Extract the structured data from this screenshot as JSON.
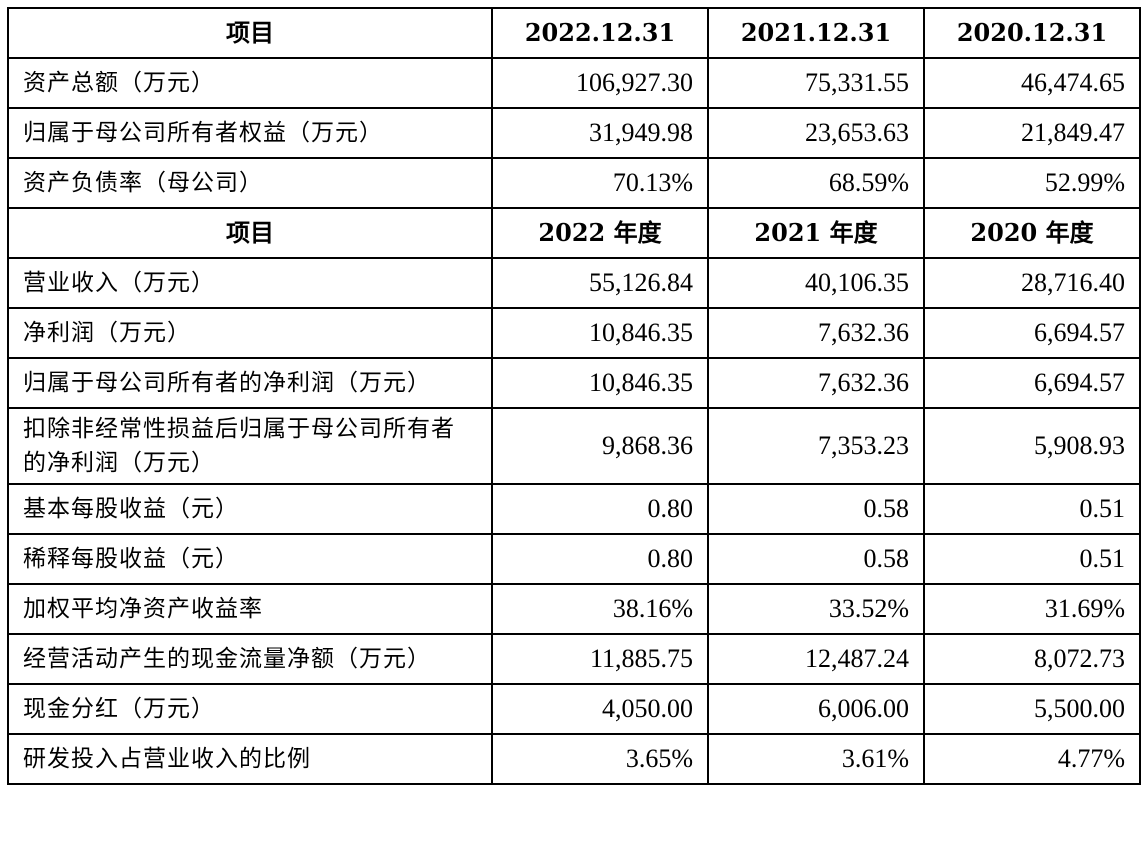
{
  "section1": {
    "header": [
      "项目",
      "2022.12.31",
      "2021.12.31",
      "2020.12.31"
    ],
    "rows": [
      {
        "label": "资产总额（万元）",
        "values": [
          "106,927.30",
          "75,331.55",
          "46,474.65"
        ]
      },
      {
        "label": "归属于母公司所有者权益（万元）",
        "values": [
          "31,949.98",
          "23,653.63",
          "21,849.47"
        ]
      },
      {
        "label": "资产负债率（母公司）",
        "values": [
          "70.13%",
          "68.59%",
          "52.99%"
        ]
      }
    ]
  },
  "section2": {
    "header": [
      "项目",
      "2022 年度",
      "2021 年度",
      "2020 年度"
    ],
    "rows": [
      {
        "label": "营业收入（万元）",
        "values": [
          "55,126.84",
          "40,106.35",
          "28,716.40"
        ]
      },
      {
        "label": "净利润（万元）",
        "values": [
          "10,846.35",
          "7,632.36",
          "6,694.57"
        ]
      },
      {
        "label": "归属于母公司所有者的净利润（万元）",
        "values": [
          "10,846.35",
          "7,632.36",
          "6,694.57"
        ]
      },
      {
        "label": "扣除非经常性损益后归属于母公司所有者的净利润（万元）",
        "values": [
          "9,868.36",
          "7,353.23",
          "5,908.93"
        ]
      },
      {
        "label": "基本每股收益（元）",
        "values": [
          "0.80",
          "0.58",
          "0.51"
        ]
      },
      {
        "label": "稀释每股收益（元）",
        "values": [
          "0.80",
          "0.58",
          "0.51"
        ]
      },
      {
        "label": "加权平均净资产收益率",
        "values": [
          "38.16%",
          "33.52%",
          "31.69%"
        ]
      },
      {
        "label": "经营活动产生的现金流量净额（万元）",
        "values": [
          "11,885.75",
          "12,487.24",
          "8,072.73"
        ]
      },
      {
        "label": "现金分红（万元）",
        "values": [
          "4,050.00",
          "6,006.00",
          "5,500.00"
        ]
      },
      {
        "label": "研发投入占营业收入的比例",
        "values": [
          "3.65%",
          "3.61%",
          "4.77%"
        ]
      }
    ]
  }
}
